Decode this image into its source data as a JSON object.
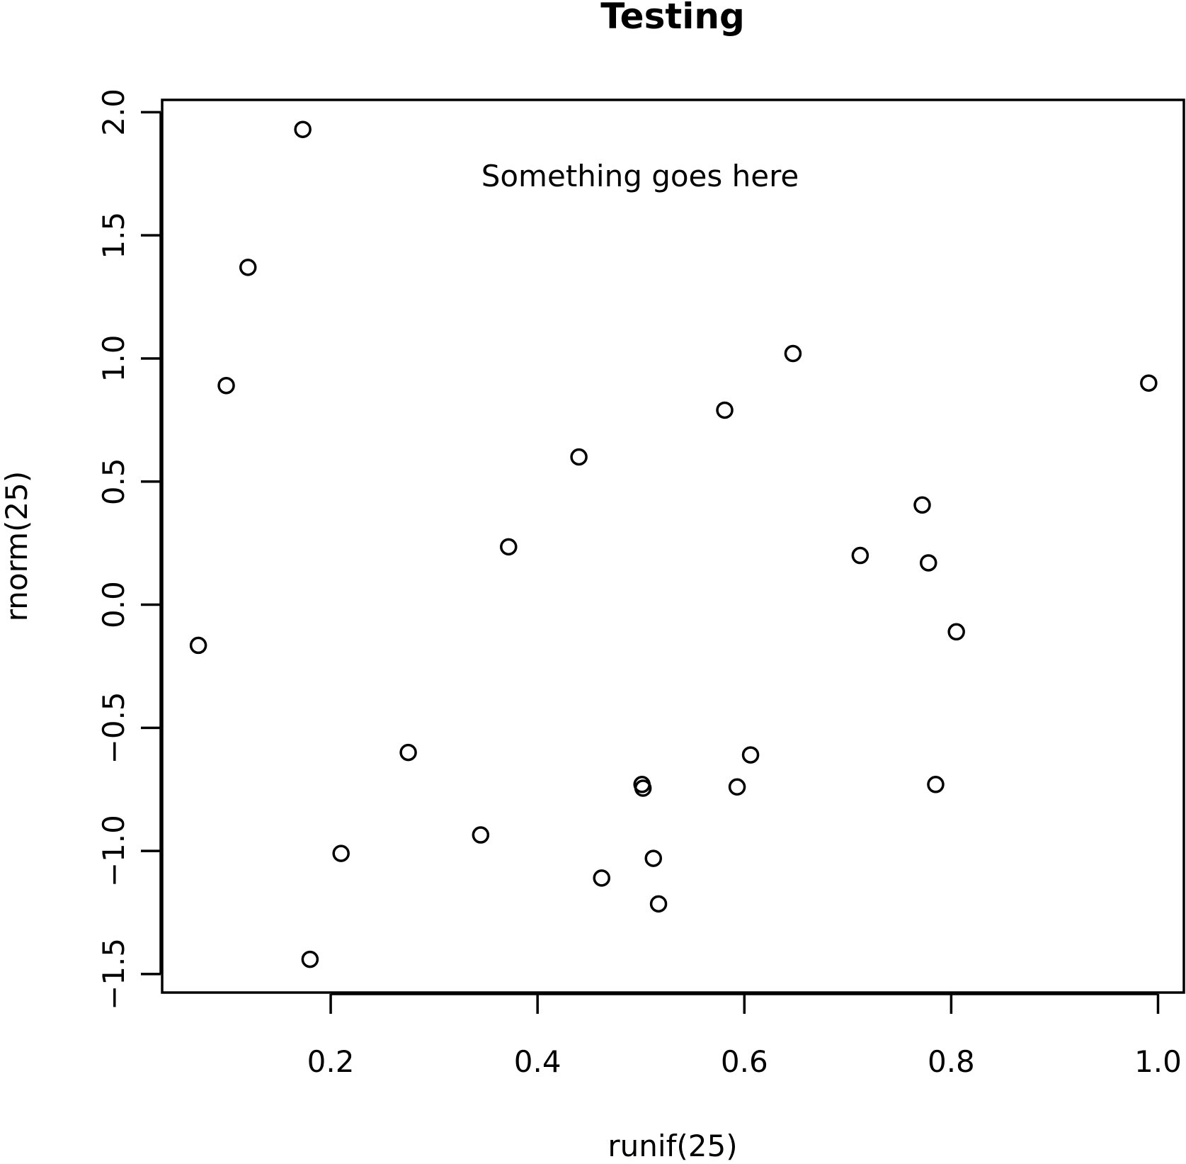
{
  "chart_data": {
    "type": "scatter",
    "title": "Testing",
    "xlabel": "runif(25)",
    "ylabel": "rnorm(25)",
    "annotation": "Something goes here",
    "xticks": [
      "0.2",
      "0.4",
      "0.6",
      "0.8",
      "1.0"
    ],
    "yticks": [
      "−1.5",
      "−1.0",
      "−0.5",
      "0.0",
      "0.5",
      "1.0",
      "1.5",
      "2.0"
    ],
    "xlim": [
      0.037,
      1.025
    ],
    "ylim": [
      -1.575,
      2.05
    ],
    "grid": false,
    "points": [
      {
        "x": 0.173,
        "y": 1.93
      },
      {
        "x": 0.12,
        "y": 1.37
      },
      {
        "x": 0.099,
        "y": 0.89
      },
      {
        "x": 0.072,
        "y": -0.165
      },
      {
        "x": 0.18,
        "y": -1.44
      },
      {
        "x": 0.21,
        "y": -1.01
      },
      {
        "x": 0.275,
        "y": -0.6
      },
      {
        "x": 0.345,
        "y": -0.935
      },
      {
        "x": 0.372,
        "y": 0.235
      },
      {
        "x": 0.44,
        "y": 0.6
      },
      {
        "x": 0.462,
        "y": -1.11
      },
      {
        "x": 0.501,
        "y": -0.73
      },
      {
        "x": 0.502,
        "y": -0.745
      },
      {
        "x": 0.512,
        "y": -1.03
      },
      {
        "x": 0.517,
        "y": -1.215
      },
      {
        "x": 0.581,
        "y": 0.79
      },
      {
        "x": 0.593,
        "y": -0.74
      },
      {
        "x": 0.606,
        "y": -0.61
      },
      {
        "x": 0.647,
        "y": 1.02
      },
      {
        "x": 0.712,
        "y": 0.2
      },
      {
        "x": 0.772,
        "y": 0.405
      },
      {
        "x": 0.778,
        "y": 0.17
      },
      {
        "x": 0.785,
        "y": -0.73
      },
      {
        "x": 0.805,
        "y": -0.11
      },
      {
        "x": 0.991,
        "y": 0.9
      }
    ]
  }
}
